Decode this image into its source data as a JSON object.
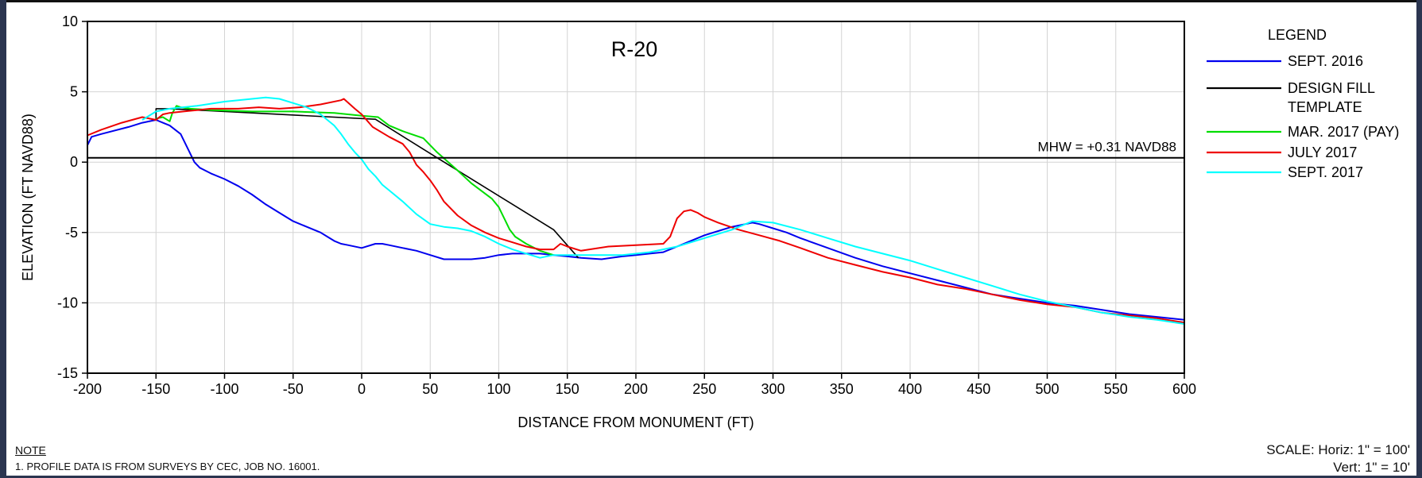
{
  "chart_data": {
    "type": "line",
    "title": "R-20",
    "xlabel": "DISTANCE FROM MONUMENT (FT)",
    "ylabel": "ELEVATION (FT NAVD88)",
    "xlim": [
      -200,
      600
    ],
    "ylim": [
      -15,
      10
    ],
    "xticks": [
      -200,
      -150,
      -100,
      -50,
      0,
      50,
      100,
      150,
      200,
      250,
      300,
      350,
      400,
      450,
      500,
      550,
      600
    ],
    "yticks": [
      10,
      5,
      0,
      -5,
      -10,
      -15
    ],
    "grid": true,
    "legend_title": "LEGEND",
    "legend_position": "right",
    "reference_line": {
      "label": "MHW = +0.31 NAVD88",
      "y": 0.31
    },
    "series": [
      {
        "name": "SEPT. 2016",
        "color": "#0000ee",
        "x": [
          -200,
          -197,
          -190,
          -170,
          -160,
          -150,
          -145,
          -140,
          -132,
          -128,
          -122,
          -118,
          -110,
          -100,
          -90,
          -80,
          -70,
          -60,
          -50,
          -40,
          -30,
          -25,
          -20,
          -15,
          -10,
          0,
          10,
          15,
          20,
          30,
          40,
          50,
          60,
          70,
          80,
          90,
          100,
          110,
          120,
          130,
          140,
          150,
          160,
          175,
          190,
          200,
          210,
          220,
          230,
          240,
          250,
          260,
          270,
          280,
          285,
          290,
          300,
          310,
          320,
          340,
          360,
          380,
          400,
          420,
          440,
          460,
          480,
          500,
          520,
          540,
          560,
          580,
          600
        ],
        "y": [
          1.2,
          1.8,
          2.0,
          2.5,
          2.8,
          3.0,
          2.8,
          2.6,
          2.0,
          1.2,
          0.0,
          -0.4,
          -0.8,
          -1.2,
          -1.7,
          -2.3,
          -3.0,
          -3.6,
          -4.2,
          -4.6,
          -5.0,
          -5.3,
          -5.6,
          -5.8,
          -5.9,
          -6.1,
          -5.8,
          -5.8,
          -5.9,
          -6.1,
          -6.3,
          -6.6,
          -6.9,
          -6.9,
          -6.9,
          -6.8,
          -6.6,
          -6.5,
          -6.5,
          -6.5,
          -6.6,
          -6.7,
          -6.8,
          -6.9,
          -6.7,
          -6.6,
          -6.5,
          -6.4,
          -6.0,
          -5.6,
          -5.2,
          -4.9,
          -4.6,
          -4.4,
          -4.3,
          -4.4,
          -4.7,
          -5.0,
          -5.4,
          -6.1,
          -6.8,
          -7.4,
          -7.9,
          -8.4,
          -8.9,
          -9.4,
          -9.7,
          -10.0,
          -10.2,
          -10.5,
          -10.8,
          -11.0,
          -11.2
        ]
      },
      {
        "name": "DESIGN FILL TEMPLATE",
        "color": "#000000",
        "x": [
          -150,
          -150,
          -140,
          10,
          55,
          140,
          158
        ],
        "y": [
          3.0,
          3.8,
          3.8,
          3.05,
          0.31,
          -4.8,
          -6.8
        ]
      },
      {
        "name": "MAR. 2017 (PAY)",
        "color": "#00dd00",
        "x": [
          -150,
          -145,
          -140,
          -138,
          -135,
          -132,
          -125,
          -110,
          -80,
          -50,
          -20,
          0,
          12,
          20,
          30,
          45,
          55,
          70,
          80,
          95,
          100,
          108,
          112,
          120,
          130,
          140
        ],
        "y": [
          3.1,
          3.2,
          2.9,
          3.5,
          4.0,
          3.9,
          3.8,
          3.7,
          3.6,
          3.6,
          3.5,
          3.3,
          3.2,
          2.6,
          2.2,
          1.7,
          0.7,
          -0.6,
          -1.5,
          -2.6,
          -3.2,
          -4.8,
          -5.3,
          -5.8,
          -6.3,
          -6.6
        ]
      },
      {
        "name": "JULY 2017",
        "color": "#ee0000",
        "x": [
          -200,
          -190,
          -175,
          -160,
          -150,
          -145,
          -140,
          -130,
          -110,
          -90,
          -75,
          -60,
          -45,
          -30,
          -15,
          -13,
          -5,
          0,
          8,
          20,
          30,
          35,
          40,
          45,
          50,
          55,
          60,
          70,
          80,
          90,
          100,
          110,
          120,
          130,
          140,
          145,
          150,
          160,
          180,
          200,
          220,
          225,
          230,
          235,
          240,
          245,
          250,
          260,
          275,
          290,
          305,
          320,
          340,
          360,
          380,
          400,
          420,
          440,
          460,
          480,
          500,
          520,
          540,
          560,
          580,
          600
        ],
        "y": [
          1.9,
          2.3,
          2.8,
          3.2,
          3.0,
          3.4,
          3.5,
          3.6,
          3.8,
          3.8,
          3.9,
          3.8,
          3.9,
          4.1,
          4.4,
          4.5,
          3.8,
          3.4,
          2.5,
          1.8,
          1.3,
          0.7,
          -0.2,
          -0.7,
          -1.3,
          -2.0,
          -2.8,
          -3.8,
          -4.5,
          -5.0,
          -5.4,
          -5.7,
          -6.0,
          -6.2,
          -6.2,
          -5.8,
          -6.0,
          -6.3,
          -6.0,
          -5.9,
          -5.8,
          -5.3,
          -4.0,
          -3.5,
          -3.4,
          -3.6,
          -3.9,
          -4.3,
          -4.8,
          -5.2,
          -5.6,
          -6.1,
          -6.8,
          -7.3,
          -7.8,
          -8.2,
          -8.7,
          -9.0,
          -9.4,
          -9.8,
          -10.1,
          -10.3,
          -10.7,
          -10.9,
          -11.1,
          -11.4
        ]
      },
      {
        "name": "SEPT. 2017",
        "color": "#00ffff",
        "x": [
          -160,
          -150,
          -140,
          -120,
          -100,
          -80,
          -70,
          -60,
          -50,
          -40,
          -30,
          -20,
          -15,
          -10,
          -5,
          0,
          5,
          10,
          15,
          20,
          30,
          40,
          50,
          60,
          70,
          80,
          90,
          100,
          110,
          120,
          130,
          140,
          150,
          170,
          190,
          210,
          230,
          250,
          270,
          285,
          300,
          320,
          340,
          360,
          380,
          400,
          420,
          440,
          460,
          480,
          500,
          520,
          540,
          560,
          580,
          600
        ],
        "y": [
          3.0,
          3.6,
          3.8,
          4.0,
          4.3,
          4.5,
          4.6,
          4.5,
          4.2,
          3.9,
          3.4,
          2.6,
          2.0,
          1.3,
          0.7,
          0.2,
          -0.5,
          -1.0,
          -1.6,
          -2.0,
          -2.8,
          -3.7,
          -4.4,
          -4.6,
          -4.7,
          -4.9,
          -5.3,
          -5.8,
          -6.2,
          -6.5,
          -6.8,
          -6.6,
          -6.6,
          -6.6,
          -6.6,
          -6.4,
          -6.0,
          -5.4,
          -4.8,
          -4.2,
          -4.3,
          -4.8,
          -5.4,
          -6.0,
          -6.5,
          -7.0,
          -7.6,
          -8.2,
          -8.8,
          -9.4,
          -9.9,
          -10.3,
          -10.7,
          -11.0,
          -11.2,
          -11.5
        ]
      }
    ]
  },
  "note": {
    "heading": "NOTE",
    "line": "1.    PROFILE DATA IS FROM SURVEYS BY CEC, JOB NO. 16001."
  },
  "scale": {
    "horiz": "SCALE:  Horiz: 1\" = 100'",
    "vert": "Vert:  1\" = 10'"
  }
}
